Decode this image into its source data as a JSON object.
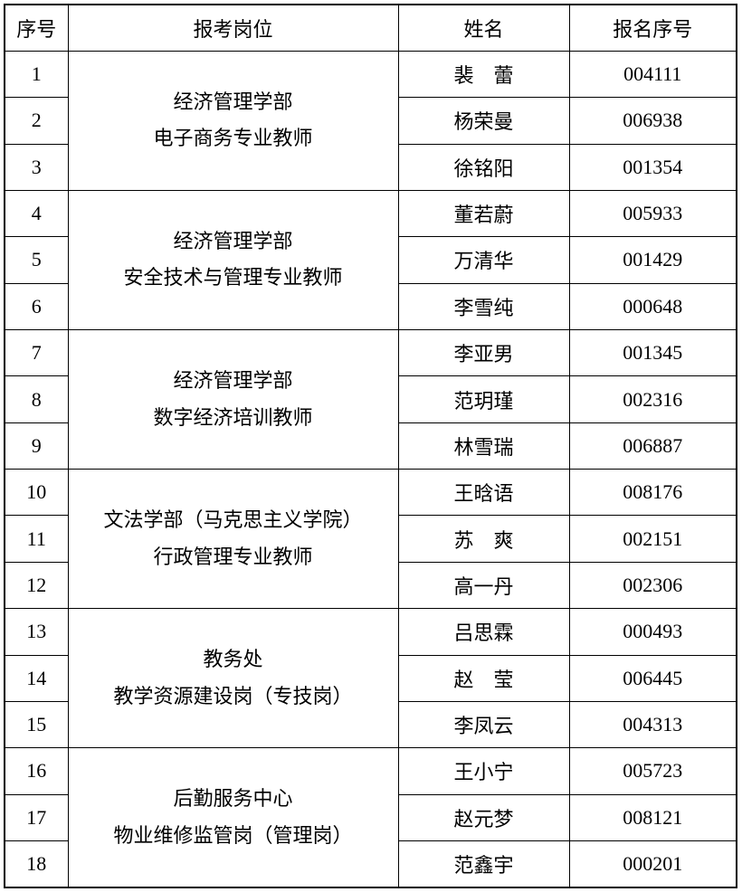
{
  "table": {
    "headers": {
      "index": "序号",
      "position": "报考岗位",
      "name": "姓名",
      "reg_no": "报名序号"
    },
    "groups": [
      {
        "department": "经济管理学部",
        "position": "电子商务专业教师",
        "members": [
          {
            "index": "1",
            "name": "裴　蕾",
            "reg_no": "004111"
          },
          {
            "index": "2",
            "name": "杨荣曼",
            "reg_no": "006938"
          },
          {
            "index": "3",
            "name": "徐铭阳",
            "reg_no": "001354"
          }
        ]
      },
      {
        "department": "经济管理学部",
        "position": "安全技术与管理专业教师",
        "members": [
          {
            "index": "4",
            "name": "董若蔚",
            "reg_no": "005933"
          },
          {
            "index": "5",
            "name": "万清华",
            "reg_no": "001429"
          },
          {
            "index": "6",
            "name": "李雪纯",
            "reg_no": "000648"
          }
        ]
      },
      {
        "department": "经济管理学部",
        "position": "数字经济培训教师",
        "members": [
          {
            "index": "7",
            "name": "李亚男",
            "reg_no": "001345"
          },
          {
            "index": "8",
            "name": "范玥瑾",
            "reg_no": "002316"
          },
          {
            "index": "9",
            "name": "林雪瑞",
            "reg_no": "006887"
          }
        ]
      },
      {
        "department": "文法学部（马克思主义学院）",
        "position": "行政管理专业教师",
        "members": [
          {
            "index": "10",
            "name": "王晗语",
            "reg_no": "008176"
          },
          {
            "index": "11",
            "name": "苏　爽",
            "reg_no": "002151"
          },
          {
            "index": "12",
            "name": "高一丹",
            "reg_no": "002306"
          }
        ]
      },
      {
        "department": "教务处",
        "position": "教学资源建设岗（专技岗）",
        "members": [
          {
            "index": "13",
            "name": "吕思霖",
            "reg_no": "000493"
          },
          {
            "index": "14",
            "name": "赵　莹",
            "reg_no": "006445"
          },
          {
            "index": "15",
            "name": "李凤云",
            "reg_no": "004313"
          }
        ]
      },
      {
        "department": "后勤服务中心",
        "position": "物业维修监管岗（管理岗）",
        "members": [
          {
            "index": "16",
            "name": "王小宁",
            "reg_no": "005723"
          },
          {
            "index": "17",
            "name": "赵元梦",
            "reg_no": "008121"
          },
          {
            "index": "18",
            "name": "范鑫宇",
            "reg_no": "000201"
          }
        ]
      }
    ]
  }
}
